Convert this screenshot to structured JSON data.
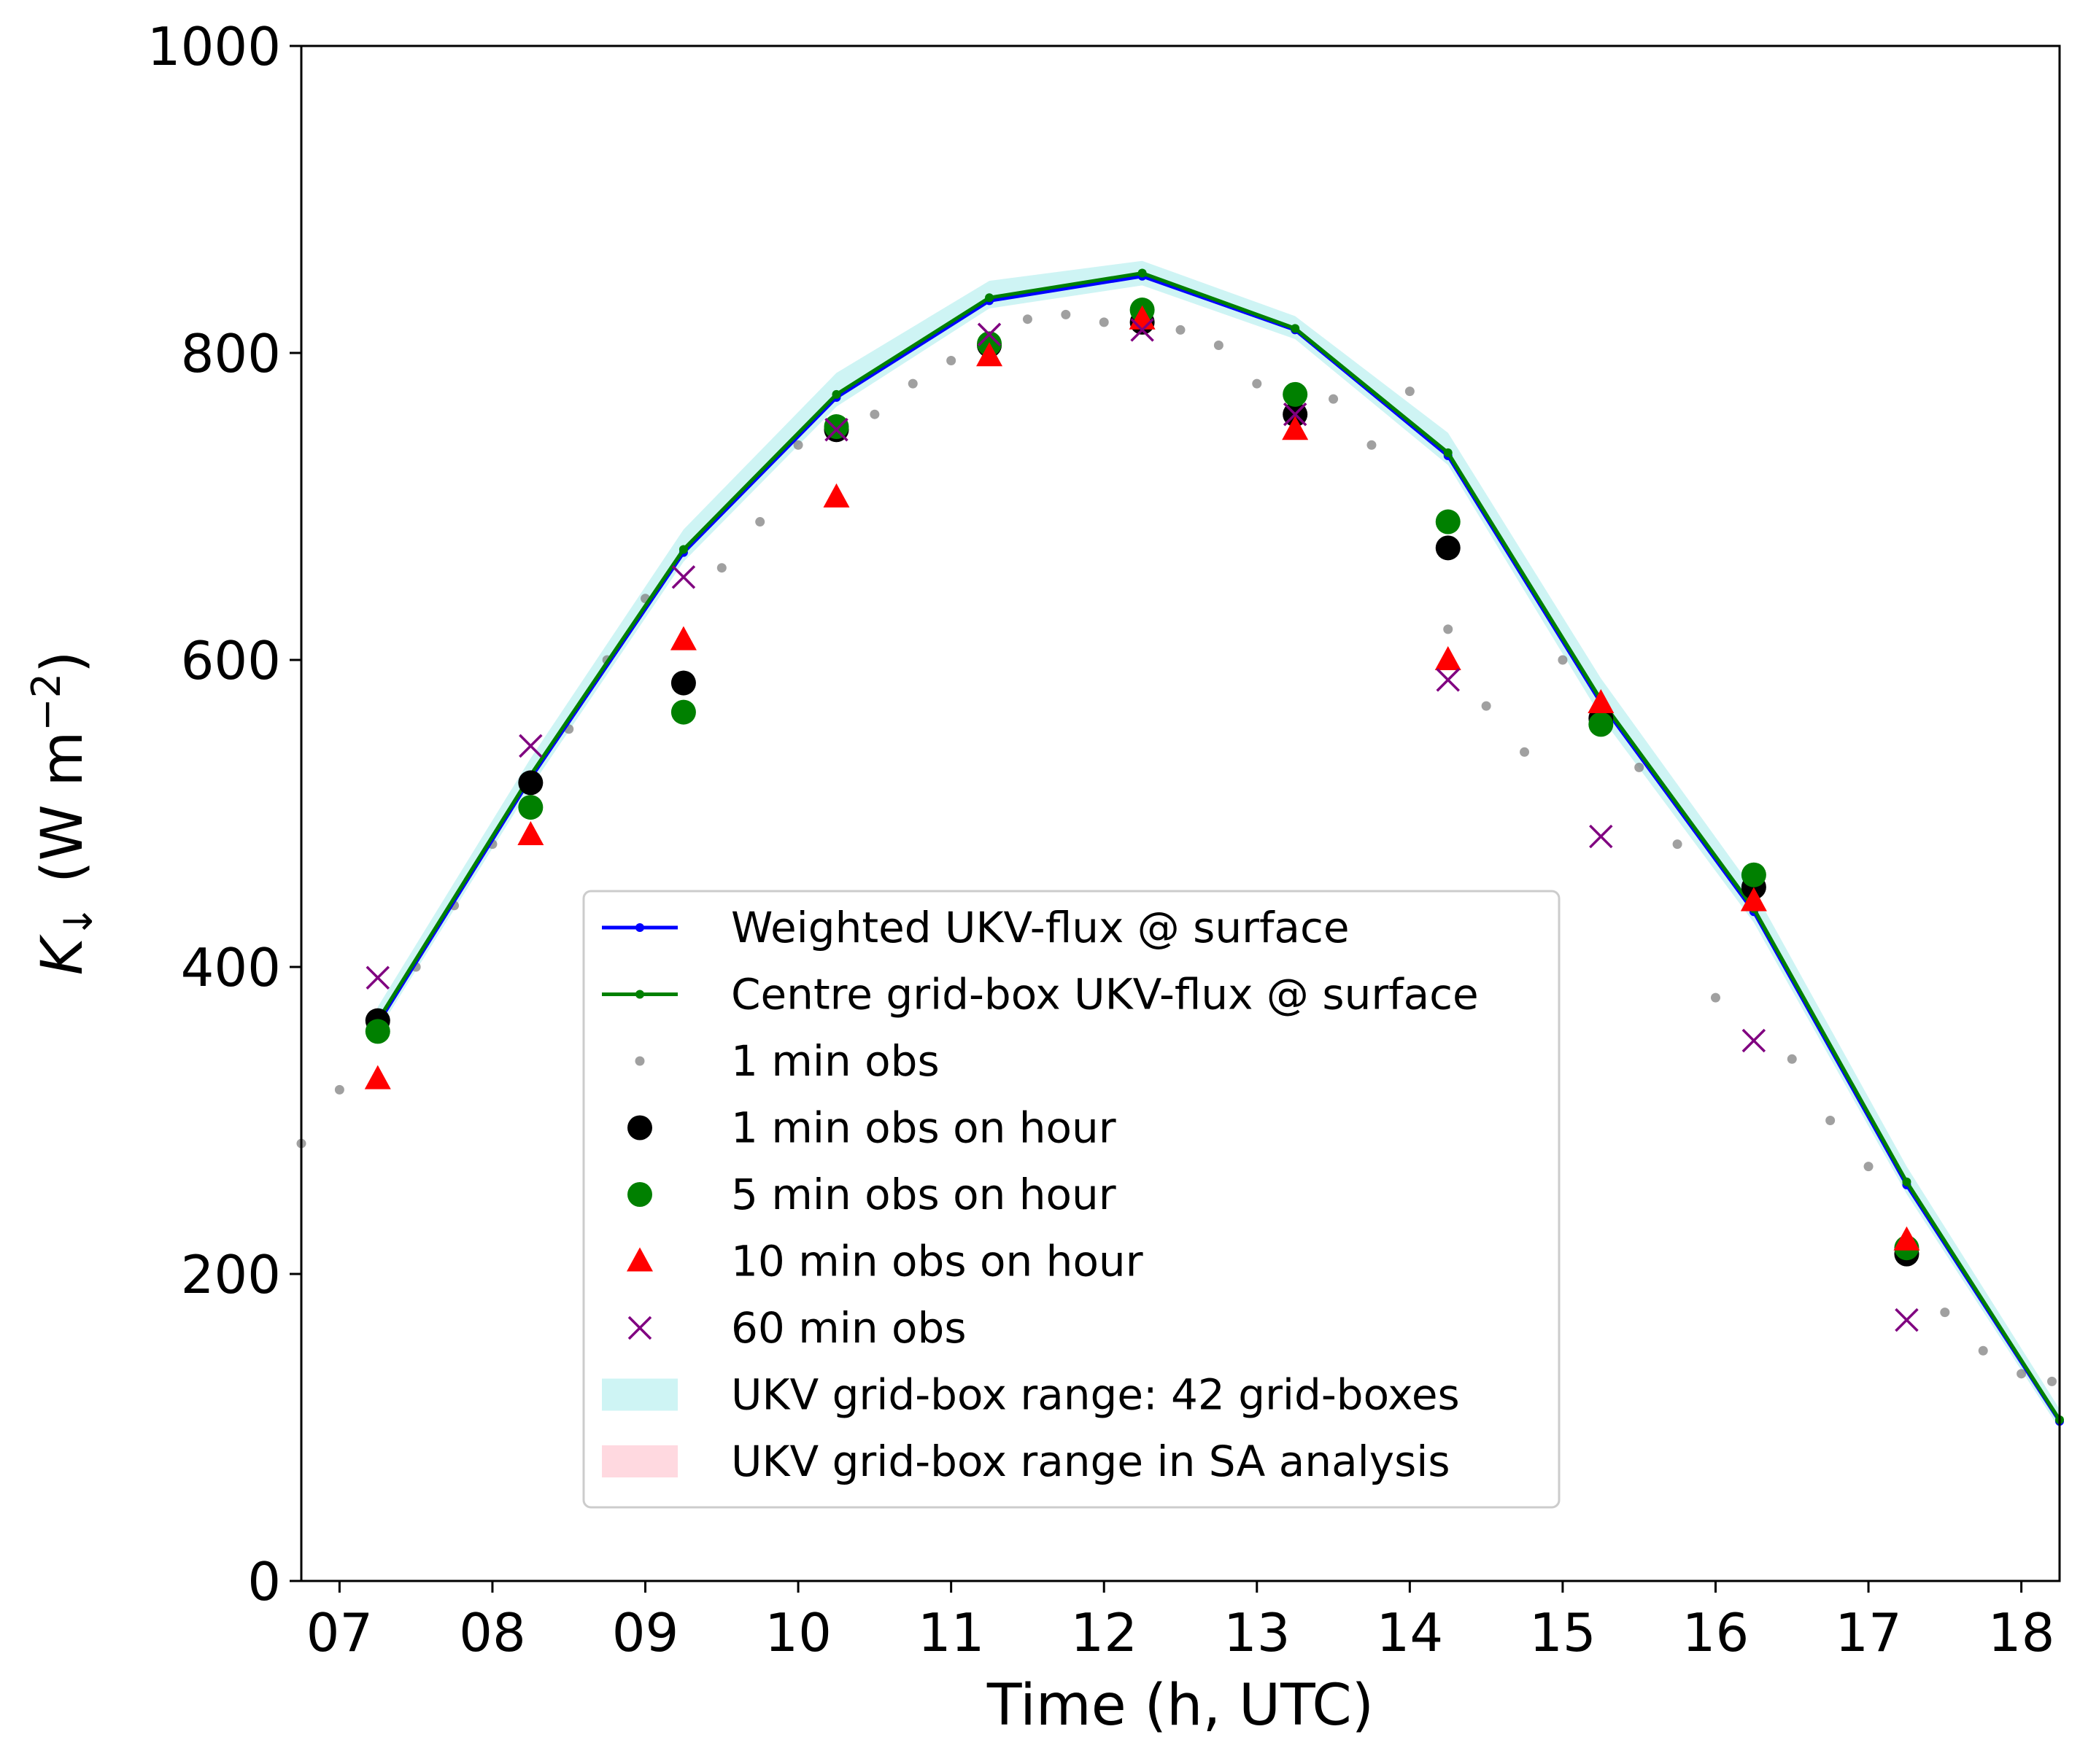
{
  "chart_data": {
    "type": "line",
    "xlabel": "Time (h, UTC)",
    "ylabel_main": "K",
    "ylabel_sub": "↓",
    "ylabel_unit_pre": "(W m",
    "ylabel_unit_exp": "−2",
    "ylabel_unit_post": ")",
    "xlim": [
      6.75,
      18.25
    ],
    "ylim": [
      0,
      1000
    ],
    "grid": false,
    "legend_position": "lower-center",
    "x_ticks": [
      {
        "value": 7,
        "label": "07"
      },
      {
        "value": 8,
        "label": "08"
      },
      {
        "value": 9,
        "label": "09"
      },
      {
        "value": 10,
        "label": "10"
      },
      {
        "value": 11,
        "label": "11"
      },
      {
        "value": 12,
        "label": "12"
      },
      {
        "value": 13,
        "label": "13"
      },
      {
        "value": 14,
        "label": "14"
      },
      {
        "value": 15,
        "label": "15"
      },
      {
        "value": 16,
        "label": "16"
      },
      {
        "value": 17,
        "label": "17"
      },
      {
        "value": 18,
        "label": "18"
      }
    ],
    "y_ticks": [
      {
        "value": 0,
        "label": "0"
      },
      {
        "value": 200,
        "label": "200"
      },
      {
        "value": 400,
        "label": "400"
      },
      {
        "value": 600,
        "label": "600"
      },
      {
        "value": 800,
        "label": "800"
      },
      {
        "value": 1000,
        "label": "1000"
      }
    ],
    "model_x": [
      7.25,
      8.25,
      9.25,
      10.25,
      11.25,
      12.25,
      13.25,
      14.25,
      15.25,
      16.25,
      17.25,
      18.25
    ],
    "series": [
      {
        "name": "Weighted UKV-flux @ surface",
        "kind": "line",
        "color": "#0000ff",
        "y": [
          363,
          523,
          670,
          771,
          834,
          850,
          815,
          733,
          572,
          436,
          258,
          104
        ]
      },
      {
        "name": "Centre grid-box UKV-flux @ surface",
        "kind": "line",
        "color": "#008000",
        "y": [
          365,
          525,
          672,
          773,
          836,
          852,
          816,
          735,
          574,
          438,
          260,
          105
        ]
      },
      {
        "name": "1 min obs",
        "kind": "scatter-small",
        "color": "#808080",
        "x": [
          6.75,
          7.0,
          7.25,
          7.5,
          7.75,
          8.0,
          8.25,
          8.5,
          8.75,
          9.0,
          9.25,
          9.5,
          9.75,
          10.0,
          10.25,
          10.5,
          10.75,
          11.0,
          11.25,
          11.5,
          11.75,
          12.0,
          12.25,
          12.5,
          12.75,
          13.0,
          13.25,
          13.5,
          13.75,
          14.0,
          14.25,
          14.5,
          14.75,
          15.0,
          15.25,
          15.5,
          15.75,
          16.0,
          16.25,
          16.5,
          16.75,
          17.0,
          17.25,
          17.5,
          17.75,
          18.0,
          18.2
        ],
        "y": [
          285,
          320,
          360,
          400,
          440,
          480,
          520,
          555,
          600,
          640,
          590,
          660,
          690,
          740,
          745,
          760,
          780,
          795,
          810,
          822,
          825,
          820,
          822,
          815,
          805,
          780,
          760,
          770,
          740,
          775,
          620,
          570,
          540,
          600,
          560,
          530,
          480,
          380,
          440,
          340,
          300,
          270,
          215,
          175,
          150,
          135,
          130
        ]
      },
      {
        "name": "1 min obs on hour",
        "kind": "circle",
        "color": "#000000",
        "y": [
          365,
          520,
          585,
          750,
          805,
          820,
          760,
          673,
          562,
          452,
          213
        ]
      },
      {
        "name": "5 min obs on hour",
        "kind": "circle",
        "color": "#008000",
        "y": [
          358,
          504,
          566,
          752,
          806,
          828,
          773,
          690,
          558,
          460,
          217
        ]
      },
      {
        "name": "10 min obs on hour",
        "kind": "triangle",
        "color": "#ff0000",
        "y": [
          327,
          486,
          613,
          706,
          798,
          822,
          750,
          600,
          572,
          443,
          222
        ]
      },
      {
        "name": "60 min obs",
        "kind": "cross",
        "color": "#800080",
        "y": [
          393,
          544,
          654,
          750,
          812,
          815,
          760,
          587,
          485,
          352,
          170
        ]
      },
      {
        "name": "UKV grid-box range: 42 grid-boxes",
        "kind": "band",
        "color": "#aeecec",
        "low": [
          358,
          517,
          664,
          765,
          829,
          844,
          809,
          727,
          563,
          429,
          252,
          99
        ],
        "high": [
          374,
          536,
          685,
          787,
          847,
          860,
          824,
          748,
          588,
          450,
          270,
          112
        ]
      },
      {
        "name": "UKV grid-box range in SA analysis",
        "kind": "band",
        "color": "#ffc0cb",
        "low": [],
        "high": []
      }
    ]
  }
}
